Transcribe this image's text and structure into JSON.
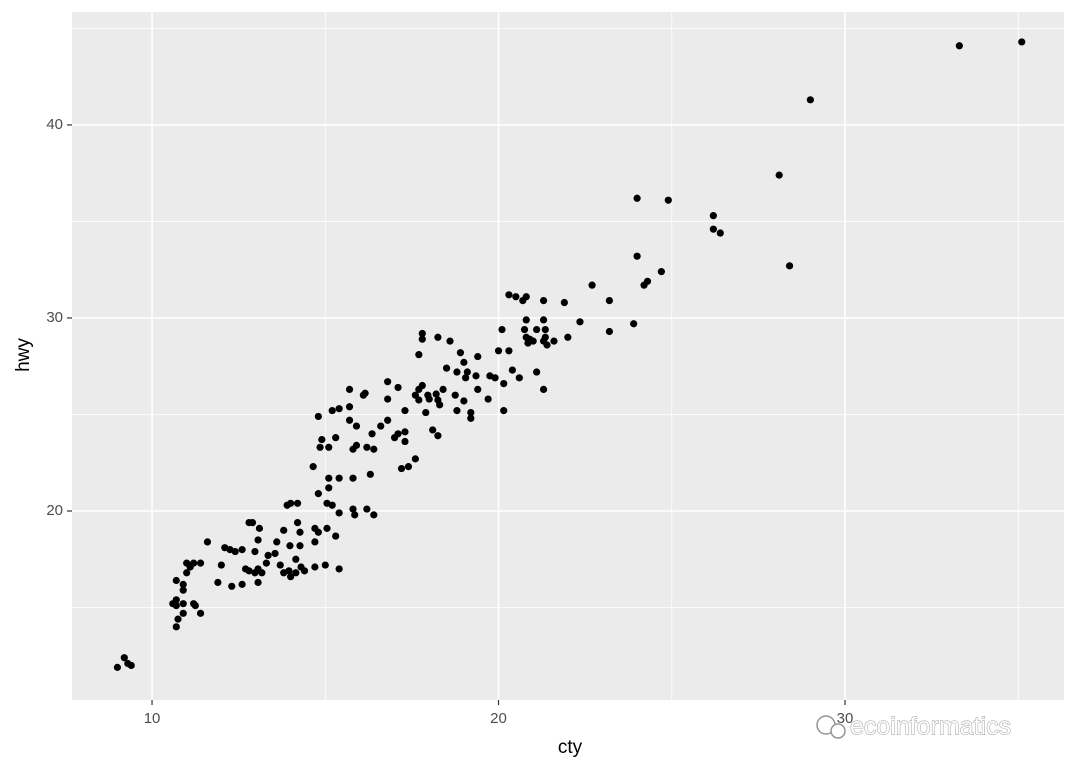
{
  "chart_data": {
    "type": "scatter",
    "x_label": "cty",
    "y_label": "hwy",
    "annotation": "ecoinformatics",
    "color": "#000000",
    "background": "#ebebeb",
    "grid": true,
    "xlim": [
      7.69,
      36.32
    ],
    "ylim": [
      10.21,
      45.85
    ],
    "xticks": [
      10,
      20,
      30
    ],
    "yticks": [
      20,
      30,
      40
    ],
    "xminor": [
      15,
      25,
      35
    ],
    "yminor": [
      15,
      25,
      35,
      45
    ],
    "x": [
      9.0,
      9.2,
      9.3,
      9.4,
      10.7,
      10.75,
      10.9,
      10.7,
      10.6,
      10.7,
      10.9,
      10.7,
      10.9,
      10.9,
      11.0,
      11.0,
      11.1,
      11.2,
      11.4,
      11.2,
      11.4,
      11.25,
      11.6,
      11.9,
      12.0,
      12.1,
      12.25,
      12.4,
      12.3,
      12.6,
      12.6,
      12.7,
      12.8,
      12.9,
      12.8,
      12.97,
      13.06,
      13.06,
      13.1,
      12.97,
      13.17,
      13.06,
      13.3,
      13.35,
      13.55,
      13.6,
      13.7,
      13.8,
      13.95,
      13.8,
      13.9,
      14.0,
      14.2,
      13.98,
      14.0,
      14.15,
      14.15,
      14.27,
      14.27,
      14.3,
      14.4,
      14.2,
      14.7,
      14.65,
      14.8,
      14.8,
      14.7,
      14.7,
      14.8,
      14.85,
      14.9,
      15.0,
      15.05,
      15.05,
      15.1,
      15.1,
      15.1,
      15.2,
      15.3,
      15.3,
      15.2,
      15.4,
      15.4,
      15.4,
      15.4,
      15.7,
      15.7,
      15.7,
      15.8,
      15.8,
      15.8,
      15.85,
      15.9,
      15.9,
      16.1,
      16.15,
      16.2,
      16.2,
      16.3,
      16.35,
      16.4,
      16.4,
      16.6,
      16.8,
      16.8,
      16.8,
      17.0,
      17.1,
      17.1,
      17.2,
      17.3,
      17.3,
      17.3,
      17.4,
      17.6,
      17.6,
      17.7,
      17.7,
      17.7,
      17.8,
      17.8,
      17.8,
      17.9,
      17.96,
      18.0,
      18.1,
      18.2,
      18.25,
      18.25,
      18.3,
      18.4,
      18.25,
      18.5,
      18.6,
      18.75,
      18.8,
      18.8,
      18.9,
      19.0,
      19.0,
      19.05,
      19.1,
      19.2,
      19.2,
      19.4,
      19.4,
      19.35,
      19.7,
      19.75,
      19.9,
      20.0,
      20.1,
      20.15,
      20.15,
      20.3,
      20.3,
      20.4,
      20.5,
      20.6,
      20.7,
      20.75,
      20.8,
      20.8,
      20.8,
      20.85,
      20.9,
      21.0,
      21.1,
      21.1,
      21.3,
      21.3,
      21.3,
      21.35,
      21.35,
      21.3,
      21.4,
      21.6,
      21.9,
      22.0,
      22.35,
      22.7,
      23.2,
      23.2,
      23.9,
      24.0,
      24.0,
      24.2,
      24.3,
      24.7,
      24.9,
      26.2,
      26.2,
      26.4,
      28.1,
      28.4,
      29.0,
      33.3,
      35.1
    ],
    "values": [
      11.9,
      12.4,
      12.1,
      12.0,
      14.0,
      14.4,
      14.7,
      15.4,
      15.2,
      15.1,
      15.2,
      16.4,
      16.2,
      15.9,
      16.8,
      17.3,
      17.1,
      17.3,
      17.3,
      15.2,
      14.7,
      15.1,
      18.4,
      16.3,
      17.2,
      18.1,
      18.0,
      17.9,
      16.1,
      16.2,
      18.0,
      17.0,
      19.4,
      19.4,
      16.9,
      16.8,
      17.0,
      18.5,
      19.1,
      17.9,
      16.8,
      16.3,
      17.3,
      17.7,
      17.8,
      18.4,
      17.2,
      16.8,
      16.9,
      19.0,
      20.3,
      20.4,
      20.4,
      18.2,
      16.6,
      16.8,
      17.5,
      18.9,
      18.2,
      17.1,
      16.9,
      19.4,
      17.1,
      22.3,
      24.9,
      20.9,
      19.1,
      18.4,
      18.9,
      23.3,
      23.7,
      17.2,
      19.1,
      20.4,
      21.7,
      21.2,
      23.3,
      25.2,
      23.8,
      18.7,
      20.3,
      19.9,
      17.0,
      21.7,
      25.3,
      26.3,
      25.4,
      24.7,
      23.2,
      21.7,
      20.1,
      19.8,
      23.4,
      24.4,
      26.0,
      26.1,
      20.1,
      23.3,
      21.9,
      24.0,
      23.2,
      19.8,
      24.4,
      26.7,
      24.7,
      25.8,
      23.8,
      26.4,
      24.0,
      22.2,
      25.2,
      24.1,
      23.6,
      22.3,
      22.7,
      26.0,
      25.75,
      26.3,
      28.1,
      29.2,
      28.9,
      26.5,
      25.1,
      26.0,
      25.8,
      24.2,
      26.06,
      23.9,
      29.0,
      25.5,
      26.3,
      25.75,
      27.4,
      28.8,
      26.0,
      25.2,
      27.2,
      28.2,
      27.7,
      25.7,
      26.9,
      27.2,
      25.1,
      24.8,
      28.0,
      26.3,
      27.0,
      25.8,
      27.0,
      26.9,
      28.3,
      29.4,
      26.6,
      25.2,
      28.3,
      31.2,
      27.3,
      31.1,
      26.9,
      30.9,
      29.4,
      29.9,
      31.1,
      29.0,
      28.7,
      28.9,
      28.8,
      27.2,
      29.4,
      28.8,
      29.9,
      30.9,
      29.4,
      29.0,
      26.3,
      28.6,
      28.8,
      30.8,
      29.0,
      29.8,
      31.7,
      30.9,
      29.3,
      29.7,
      36.2,
      33.2,
      31.7,
      31.9,
      32.4,
      36.1,
      35.3,
      34.6,
      34.4,
      37.4,
      32.7,
      41.3,
      44.1,
      44.3
    ]
  }
}
